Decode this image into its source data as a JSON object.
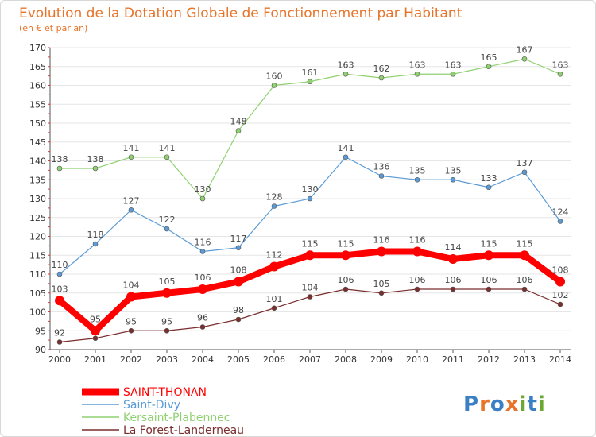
{
  "header": {
    "title": "Evolution de la Dotation Globale de Fonctionnement par Habitant",
    "subtitle": "(en € et par an)"
  },
  "brand": {
    "text": "Proxiti",
    "letters": [
      "P",
      "r",
      "o",
      "x",
      "i",
      "t",
      "i"
    ],
    "colors": [
      "#3b7fc4",
      "#e8742a",
      "#3b7fc4",
      "#e8742a",
      "#6aa832",
      "#3b7fc4",
      "#6aa832"
    ]
  },
  "chart_data": {
    "type": "line",
    "title": "Evolution de la Dotation Globale de Fonctionnement par Habitant",
    "subtitle": "(en € et par an)",
    "xlabel": "",
    "ylabel": "",
    "x": [
      "2000",
      "2001",
      "2002",
      "2003",
      "2004",
      "2005",
      "2006",
      "2007",
      "2008",
      "2009",
      "2010",
      "2011",
      "2012",
      "2013",
      "2014"
    ],
    "ylim": [
      90,
      170
    ],
    "yticks": [
      "90",
      "95",
      "100",
      "105",
      "110",
      "115",
      "120",
      "125",
      "130",
      "135",
      "140",
      "145",
      "150",
      "155",
      "160",
      "165",
      "170"
    ],
    "grid": "horizontal",
    "legend_position": "bottom-left",
    "series": [
      {
        "name": "SAINT-THONAN",
        "color": "#ff0000",
        "emphasis": true,
        "values": [
          103,
          95,
          104,
          105,
          106,
          108,
          112,
          115,
          115,
          116,
          116,
          114,
          115,
          115,
          108
        ],
        "labels": [
          "103",
          "95",
          "104",
          "105",
          "106",
          "108",
          "112",
          "115",
          "115",
          "116",
          "116",
          "114",
          "115",
          "115",
          "108"
        ]
      },
      {
        "name": "Saint-Divy",
        "color": "#5b9bd5",
        "emphasis": false,
        "values": [
          110,
          118,
          127,
          122,
          116,
          117,
          128,
          130,
          141,
          136,
          135,
          135,
          133,
          137,
          124
        ],
        "labels": [
          "110",
          "118",
          "127",
          "122",
          "116",
          "117",
          "128",
          "130",
          "141",
          "136",
          "135",
          "135",
          "133",
          "137",
          "124"
        ]
      },
      {
        "name": "Kersaint-Plabennec",
        "color": "#8fd070",
        "emphasis": false,
        "values": [
          138,
          138,
          141,
          141,
          130,
          148,
          160,
          161,
          163,
          162,
          163,
          163,
          165,
          167,
          163
        ],
        "labels": [
          "138",
          "138",
          "141",
          "141",
          "130",
          "148",
          "160",
          "161",
          "163",
          "162",
          "163",
          "163",
          "165",
          "167",
          "163"
        ]
      },
      {
        "name": "La Forest-Landerneau",
        "color": "#7a2e2e",
        "emphasis": false,
        "values": [
          92,
          93,
          95,
          95,
          96,
          98,
          101,
          104,
          106,
          105,
          106,
          106,
          106,
          106,
          102
        ],
        "labels": [
          "92",
          "",
          "95",
          "95",
          "96",
          "98",
          "101",
          "104",
          "106",
          "105",
          "106",
          "106",
          "106",
          "106",
          "102"
        ]
      }
    ]
  }
}
